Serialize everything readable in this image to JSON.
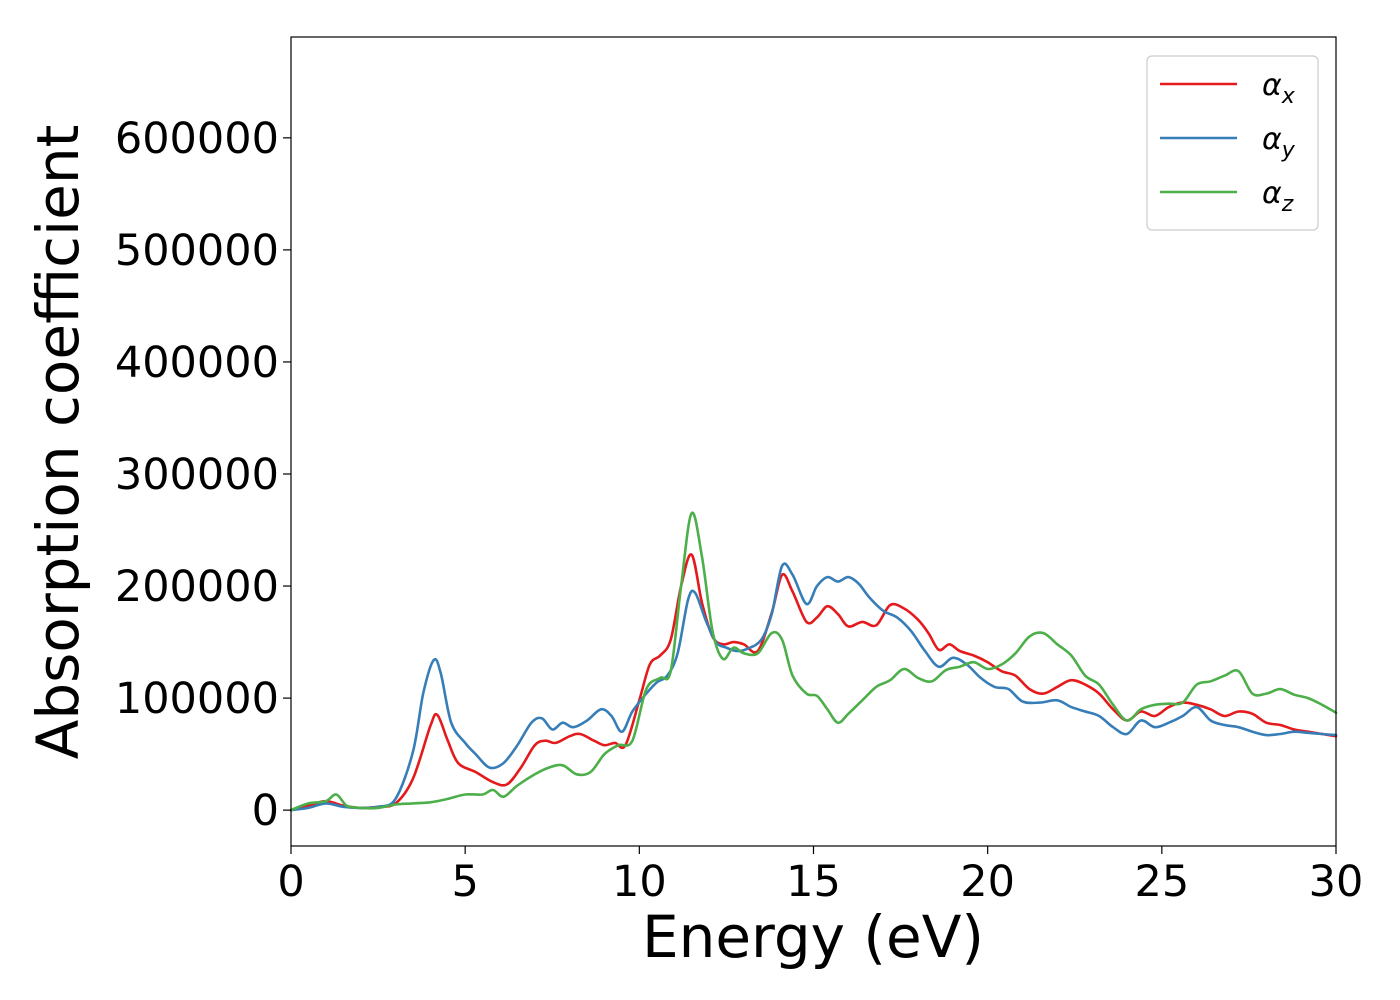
{
  "chart_data": {
    "type": "line",
    "title": "",
    "xlabel": "Energy (eV)",
    "ylabel": "Absorption coefficient",
    "xlim": [
      0,
      30
    ],
    "ylim": [
      -32000,
      690000
    ],
    "xticks": [
      0,
      5,
      10,
      15,
      20,
      25,
      30
    ],
    "yticks": [
      0,
      100000,
      200000,
      300000,
      400000,
      500000,
      600000
    ],
    "grid": false,
    "legend_position": "top-right",
    "series": [
      {
        "name": "αx",
        "legend_base": "α",
        "legend_sub": "x",
        "color": "#e41a1c",
        "x": [
          0,
          0.5,
          1.0,
          1.5,
          2.0,
          2.5,
          3.0,
          3.5,
          4.0,
          4.2,
          4.5,
          4.8,
          5.3,
          5.8,
          6.2,
          6.6,
          7.0,
          7.3,
          7.6,
          8.0,
          8.3,
          8.7,
          9.0,
          9.3,
          9.6,
          10.0,
          10.3,
          10.6,
          10.9,
          11.2,
          11.5,
          11.8,
          12.1,
          12.4,
          12.7,
          13.0,
          13.4,
          13.8,
          14.1,
          14.4,
          14.8,
          15.1,
          15.4,
          15.7,
          16.0,
          16.4,
          16.8,
          17.2,
          17.6,
          18.0,
          18.3,
          18.6,
          18.9,
          19.2,
          19.6,
          20.0,
          20.4,
          20.8,
          21.2,
          21.6,
          22.0,
          22.4,
          22.8,
          23.2,
          23.6,
          24.0,
          24.4,
          24.8,
          25.2,
          25.6,
          26.0,
          26.4,
          26.8,
          27.2,
          27.6,
          28.0,
          28.4,
          28.8,
          29.2,
          29.6,
          30.0
        ],
        "y": [
          0,
          4000,
          8000,
          4000,
          2000,
          3000,
          6000,
          28000,
          75000,
          85000,
          62000,
          42000,
          34000,
          25000,
          23000,
          38000,
          58000,
          62000,
          60000,
          66000,
          68000,
          62000,
          58000,
          60000,
          58000,
          98000,
          130000,
          138000,
          152000,
          200000,
          228000,
          185000,
          155000,
          148000,
          150000,
          148000,
          142000,
          176000,
          210000,
          195000,
          168000,
          172000,
          182000,
          175000,
          164000,
          168000,
          165000,
          183000,
          180000,
          170000,
          158000,
          143000,
          148000,
          142000,
          138000,
          132000,
          124000,
          120000,
          108000,
          104000,
          110000,
          116000,
          112000,
          104000,
          90000,
          80000,
          88000,
          84000,
          92000,
          96000,
          94000,
          90000,
          84000,
          88000,
          86000,
          78000,
          76000,
          72000,
          70000,
          68000,
          66000
        ]
      },
      {
        "name": "αy",
        "legend_base": "α",
        "legend_sub": "y",
        "color": "#377eb8",
        "x": [
          0,
          0.5,
          1.0,
          1.5,
          2.0,
          2.5,
          3.0,
          3.5,
          3.8,
          4.1,
          4.3,
          4.6,
          5.0,
          5.3,
          5.7,
          6.1,
          6.5,
          6.9,
          7.2,
          7.5,
          7.8,
          8.1,
          8.5,
          8.9,
          9.2,
          9.5,
          9.8,
          10.2,
          10.5,
          10.8,
          11.1,
          11.4,
          11.6,
          11.9,
          12.2,
          12.5,
          12.8,
          13.1,
          13.5,
          13.8,
          14.1,
          14.4,
          14.8,
          15.1,
          15.4,
          15.7,
          16.0,
          16.3,
          16.6,
          17.0,
          17.4,
          17.8,
          18.2,
          18.6,
          19.0,
          19.4,
          19.8,
          20.2,
          20.6,
          21.0,
          21.5,
          22.0,
          22.4,
          22.8,
          23.2,
          23.6,
          24.0,
          24.4,
          24.8,
          25.2,
          25.6,
          26.0,
          26.4,
          26.8,
          27.2,
          27.6,
          28.0,
          28.4,
          28.8,
          29.2,
          29.6,
          30.0
        ],
        "y": [
          0,
          2000,
          6000,
          3000,
          2000,
          3000,
          10000,
          52000,
          105000,
          134000,
          122000,
          78000,
          60000,
          50000,
          38000,
          42000,
          58000,
          78000,
          82000,
          72000,
          78000,
          74000,
          80000,
          90000,
          84000,
          70000,
          88000,
          104000,
          114000,
          120000,
          140000,
          188000,
          194000,
          170000,
          150000,
          145000,
          142000,
          144000,
          152000,
          175000,
          218000,
          210000,
          184000,
          200000,
          208000,
          204000,
          208000,
          202000,
          190000,
          178000,
          172000,
          160000,
          142000,
          128000,
          136000,
          130000,
          118000,
          110000,
          108000,
          97000,
          96000,
          98000,
          92000,
          88000,
          84000,
          74000,
          68000,
          80000,
          74000,
          78000,
          84000,
          92000,
          80000,
          76000,
          74000,
          70000,
          67000,
          68000,
          70000,
          69000,
          68000,
          67000
        ]
      },
      {
        "name": "αz",
        "legend_base": "α",
        "legend_sub": "z",
        "color": "#4daf4a",
        "x": [
          0,
          0.5,
          1.0,
          1.3,
          1.6,
          2.0,
          2.5,
          3.0,
          3.5,
          4.0,
          4.5,
          5.0,
          5.5,
          5.8,
          6.1,
          6.5,
          7.0,
          7.4,
          7.8,
          8.2,
          8.6,
          9.0,
          9.4,
          9.8,
          10.2,
          10.6,
          10.9,
          11.2,
          11.5,
          11.8,
          12.1,
          12.4,
          12.7,
          13.0,
          13.4,
          13.8,
          14.1,
          14.4,
          14.8,
          15.1,
          15.4,
          15.7,
          16.0,
          16.4,
          16.8,
          17.2,
          17.6,
          18.0,
          18.4,
          18.8,
          19.2,
          19.6,
          20.0,
          20.4,
          20.8,
          21.2,
          21.6,
          22.0,
          22.4,
          22.8,
          23.2,
          23.6,
          24.0,
          24.4,
          24.8,
          25.2,
          25.6,
          26.0,
          26.4,
          26.8,
          27.2,
          27.6,
          28.0,
          28.4,
          28.8,
          29.2,
          29.6,
          30.0
        ],
        "y": [
          0,
          6000,
          8000,
          14000,
          4000,
          2000,
          2000,
          5000,
          6000,
          7000,
          10000,
          14000,
          14000,
          18000,
          12000,
          22000,
          32000,
          38000,
          40000,
          32000,
          34000,
          50000,
          58000,
          62000,
          108000,
          118000,
          124000,
          200000,
          265000,
          226000,
          160000,
          135000,
          145000,
          140000,
          140000,
          158000,
          152000,
          120000,
          104000,
          102000,
          90000,
          78000,
          86000,
          98000,
          110000,
          116000,
          126000,
          118000,
          115000,
          125000,
          128000,
          132000,
          126000,
          130000,
          140000,
          155000,
          158000,
          148000,
          138000,
          120000,
          112000,
          94000,
          80000,
          90000,
          94000,
          95000,
          96000,
          112000,
          115000,
          120000,
          124000,
          104000,
          104000,
          108000,
          103000,
          100000,
          94000,
          87000
        ]
      }
    ]
  }
}
